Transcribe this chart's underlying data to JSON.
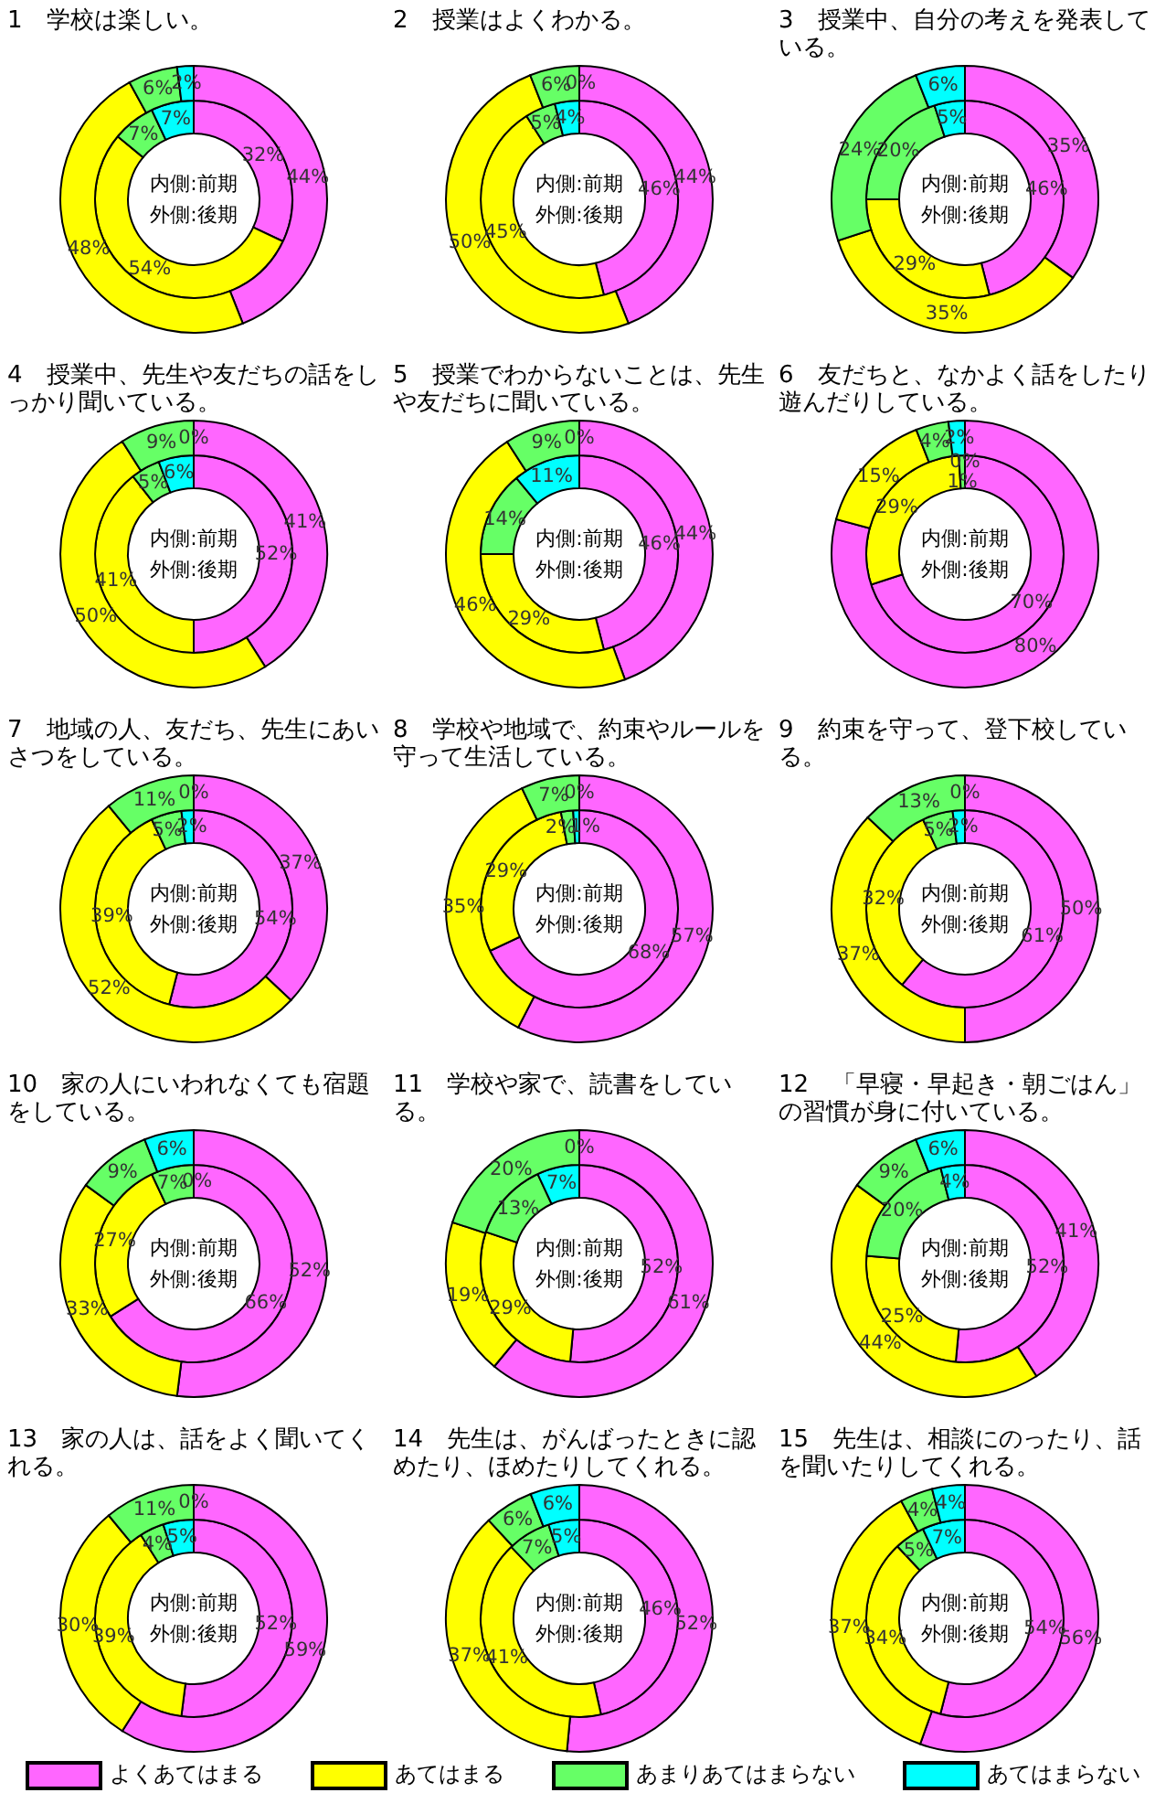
{
  "chart_data": [
    {
      "type": "donut",
      "title": "1　学校は楽しい。",
      "annotations": [
        "内側:前期",
        "外側:後期"
      ],
      "categories": [
        null,
        null,
        null,
        null
      ],
      "colors": [
        "#ff66ff",
        "#ffff00",
        "#66ff66",
        "#00ffff"
      ],
      "series": [
        {
          "values": [
            32,
            54,
            7,
            7
          ],
          "value_labels": [
            "32%",
            "54%",
            "7%",
            "7%"
          ]
        },
        {
          "values": [
            44,
            48,
            6,
            2
          ],
          "value_labels": [
            "44%",
            "48%",
            "6%",
            "2%"
          ]
        }
      ]
    },
    {
      "type": "donut",
      "title": "2　授業はよくわかる。",
      "annotations": [
        "内側:前期",
        "外側:後期"
      ],
      "categories": [
        null,
        null,
        null,
        null
      ],
      "colors": [
        "#ff66ff",
        "#ffff00",
        "#66ff66",
        "#00ffff"
      ],
      "series": [
        {
          "values": [
            46,
            45,
            5,
            4
          ],
          "value_labels": [
            "46%",
            "45%",
            "5%",
            "4%"
          ]
        },
        {
          "values": [
            44,
            50,
            6,
            0
          ],
          "value_labels": [
            "44%",
            "50%",
            "6%",
            "0%"
          ]
        }
      ]
    },
    {
      "type": "donut",
      "title": "3　授業中、自分の考えを発表している。",
      "annotations": [
        "内側:前期",
        "外側:後期"
      ],
      "categories": [
        null,
        null,
        null,
        null
      ],
      "colors": [
        "#ff66ff",
        "#ffff00",
        "#66ff66",
        "#00ffff"
      ],
      "series": [
        {
          "values": [
            46,
            29,
            20,
            5
          ],
          "value_labels": [
            "46%",
            "29%",
            "20%",
            "5%"
          ]
        },
        {
          "values": [
            35,
            35,
            24,
            6
          ],
          "value_labels": [
            "35%",
            "35%",
            "24%",
            "6%"
          ]
        }
      ]
    },
    {
      "type": "donut",
      "title": "4　授業中、先生や友だちの話をしっかり聞いている。",
      "annotations": [
        "内側:前期",
        "外側:後期"
      ],
      "categories": [
        null,
        null,
        null,
        null
      ],
      "colors": [
        "#ff66ff",
        "#ffff00",
        "#66ff66",
        "#00ffff"
      ],
      "series": [
        {
          "values": [
            52,
            41,
            5,
            6
          ],
          "value_labels": [
            "52%",
            "41%",
            "5%",
            "6%"
          ]
        },
        {
          "values": [
            41,
            50,
            9,
            0
          ],
          "value_labels": [
            "41%",
            "50%",
            "9%",
            "0%"
          ]
        }
      ]
    },
    {
      "type": "donut",
      "title": "5　授業でわからないことは、先生や友だちに聞いている。",
      "annotations": [
        "内側:前期",
        "外側:後期"
      ],
      "categories": [
        null,
        null,
        null,
        null
      ],
      "colors": [
        "#ff66ff",
        "#ffff00",
        "#66ff66",
        "#00ffff"
      ],
      "series": [
        {
          "values": [
            46,
            29,
            14,
            11
          ],
          "value_labels": [
            "46%",
            "29%",
            "14%",
            "11%"
          ]
        },
        {
          "values": [
            44,
            46,
            9,
            0
          ],
          "value_labels": [
            "44%",
            "46%",
            "9%",
            "0%"
          ]
        }
      ]
    },
    {
      "type": "donut",
      "title": "6　友だちと、なかよく話をしたり遊んだりしている。",
      "annotations": [
        "内側:前期",
        "外側:後期"
      ],
      "categories": [
        null,
        null,
        null,
        null
      ],
      "colors": [
        "#ff66ff",
        "#ffff00",
        "#66ff66",
        "#00ffff"
      ],
      "series": [
        {
          "values": [
            70,
            29,
            1,
            0
          ],
          "value_labels": [
            "70%",
            "29%",
            "1%",
            "0%"
          ]
        },
        {
          "values": [
            80,
            15,
            4,
            2
          ],
          "value_labels": [
            "80%",
            "15%",
            "4%",
            "2%"
          ]
        }
      ]
    },
    {
      "type": "donut",
      "title": "7　地域の人、友だち、先生にあいさつをしている。",
      "annotations": [
        "内側:前期",
        "外側:後期"
      ],
      "categories": [
        null,
        null,
        null,
        null
      ],
      "colors": [
        "#ff66ff",
        "#ffff00",
        "#66ff66",
        "#00ffff"
      ],
      "series": [
        {
          "values": [
            54,
            39,
            5,
            2
          ],
          "value_labels": [
            "54%",
            "39%",
            "5%",
            "2%"
          ]
        },
        {
          "values": [
            37,
            52,
            11,
            0
          ],
          "value_labels": [
            "37%",
            "52%",
            "11%",
            "0%"
          ]
        }
      ]
    },
    {
      "type": "donut",
      "title": "8　学校や地域で、約束やルールを守って生活している。",
      "annotations": [
        "内側:前期",
        "外側:後期"
      ],
      "categories": [
        null,
        null,
        null,
        null
      ],
      "colors": [
        "#ff66ff",
        "#ffff00",
        "#66ff66",
        "#00ffff"
      ],
      "series": [
        {
          "values": [
            68,
            29,
            2,
            1
          ],
          "value_labels": [
            "68%",
            "29%",
            "2%",
            "1%"
          ]
        },
        {
          "values": [
            57,
            35,
            7,
            0
          ],
          "value_labels": [
            "57%",
            "35%",
            "7%",
            "0%"
          ]
        }
      ]
    },
    {
      "type": "donut",
      "title": "9　約束を守って、登下校している。",
      "annotations": [
        "内側:前期",
        "外側:後期"
      ],
      "categories": [
        null,
        null,
        null,
        null
      ],
      "colors": [
        "#ff66ff",
        "#ffff00",
        "#66ff66",
        "#00ffff"
      ],
      "series": [
        {
          "values": [
            61,
            32,
            5,
            2
          ],
          "value_labels": [
            "61%",
            "32%",
            "5%",
            "2%"
          ]
        },
        {
          "values": [
            50,
            37,
            13,
            0
          ],
          "value_labels": [
            "50%",
            "37%",
            "13%",
            "0%"
          ]
        }
      ]
    },
    {
      "type": "donut",
      "title": "10　家の人にいわれなくても宿題をしている。",
      "annotations": [
        "内側:前期",
        "外側:後期"
      ],
      "categories": [
        null,
        null,
        null,
        null
      ],
      "colors": [
        "#ff66ff",
        "#ffff00",
        "#66ff66",
        "#00ffff"
      ],
      "series": [
        {
          "values": [
            66,
            27,
            7,
            0
          ],
          "value_labels": [
            "66%",
            "27%",
            "7%",
            "0%"
          ]
        },
        {
          "values": [
            52,
            33,
            9,
            6
          ],
          "value_labels": [
            "52%",
            "33%",
            "9%",
            "6%"
          ]
        }
      ]
    },
    {
      "type": "donut",
      "title": "11　学校や家で、読書をしている。",
      "annotations": [
        "内側:前期",
        "外側:後期"
      ],
      "categories": [
        null,
        null,
        null,
        null
      ],
      "colors": [
        "#ff66ff",
        "#ffff00",
        "#66ff66",
        "#00ffff"
      ],
      "series": [
        {
          "values": [
            52,
            29,
            13,
            7
          ],
          "value_labels": [
            "52%",
            "29%",
            "13%",
            "7%"
          ]
        },
        {
          "values": [
            61,
            19,
            20,
            0
          ],
          "value_labels": [
            "61%",
            "19%",
            "20%",
            "0%"
          ]
        }
      ]
    },
    {
      "type": "donut",
      "title": "12　「早寝・早起き・朝ごはん」の習慣が身に付いている。",
      "annotations": [
        "内側:前期",
        "外側:後期"
      ],
      "categories": [
        null,
        null,
        null,
        null
      ],
      "colors": [
        "#ff66ff",
        "#ffff00",
        "#66ff66",
        "#00ffff"
      ],
      "series": [
        {
          "values": [
            52,
            25,
            20,
            4
          ],
          "value_labels": [
            "52%",
            "25%",
            "20%",
            "4%"
          ]
        },
        {
          "values": [
            41,
            44,
            9,
            6
          ],
          "value_labels": [
            "41%",
            "44%",
            "9%",
            "6%"
          ]
        }
      ]
    },
    {
      "type": "donut",
      "title": "13　家の人は、話をよく聞いてくれる。",
      "annotations": [
        "内側:前期",
        "外側:後期"
      ],
      "categories": [
        null,
        null,
        null,
        null
      ],
      "colors": [
        "#ff66ff",
        "#ffff00",
        "#66ff66",
        "#00ffff"
      ],
      "series": [
        {
          "values": [
            52,
            39,
            4,
            5
          ],
          "value_labels": [
            "52%",
            "39%",
            "4%",
            "5%"
          ]
        },
        {
          "values": [
            59,
            30,
            11,
            0
          ],
          "value_labels": [
            "59%",
            "30%",
            "11%",
            "0%"
          ]
        }
      ]
    },
    {
      "type": "donut",
      "title": "14　先生は、がんばったときに認めたり、ほめたりしてくれる。",
      "annotations": [
        "内側:前期",
        "外側:後期"
      ],
      "categories": [
        null,
        null,
        null,
        null
      ],
      "colors": [
        "#ff66ff",
        "#ffff00",
        "#66ff66",
        "#00ffff"
      ],
      "series": [
        {
          "values": [
            46,
            41,
            7,
            5
          ],
          "value_labels": [
            "46%",
            "41%",
            "7%",
            "5%"
          ]
        },
        {
          "values": [
            52,
            37,
            6,
            6
          ],
          "value_labels": [
            "52%",
            "37%",
            "6%",
            "6%"
          ]
        }
      ]
    },
    {
      "type": "donut",
      "title": "15　先生は、相談にのったり、話を聞いたりしてくれる。",
      "annotations": [
        "内側:前期",
        "外側:後期"
      ],
      "categories": [
        "よくあてはまる",
        "あてはまる",
        "あまりあてはまらない",
        "あてはまらない"
      ],
      "colors": [
        "#ff66ff",
        "#ffff00",
        "#66ff66",
        "#00ffff"
      ],
      "legend": "bottom",
      "series": [
        {
          "values": [
            54,
            34,
            5,
            7
          ],
          "value_labels": [
            "54%",
            "34%",
            "5%",
            "7%"
          ]
        },
        {
          "values": [
            56,
            37,
            4,
            4
          ],
          "value_labels": [
            "56%",
            "37%",
            "4%",
            "4%"
          ]
        }
      ]
    }
  ]
}
